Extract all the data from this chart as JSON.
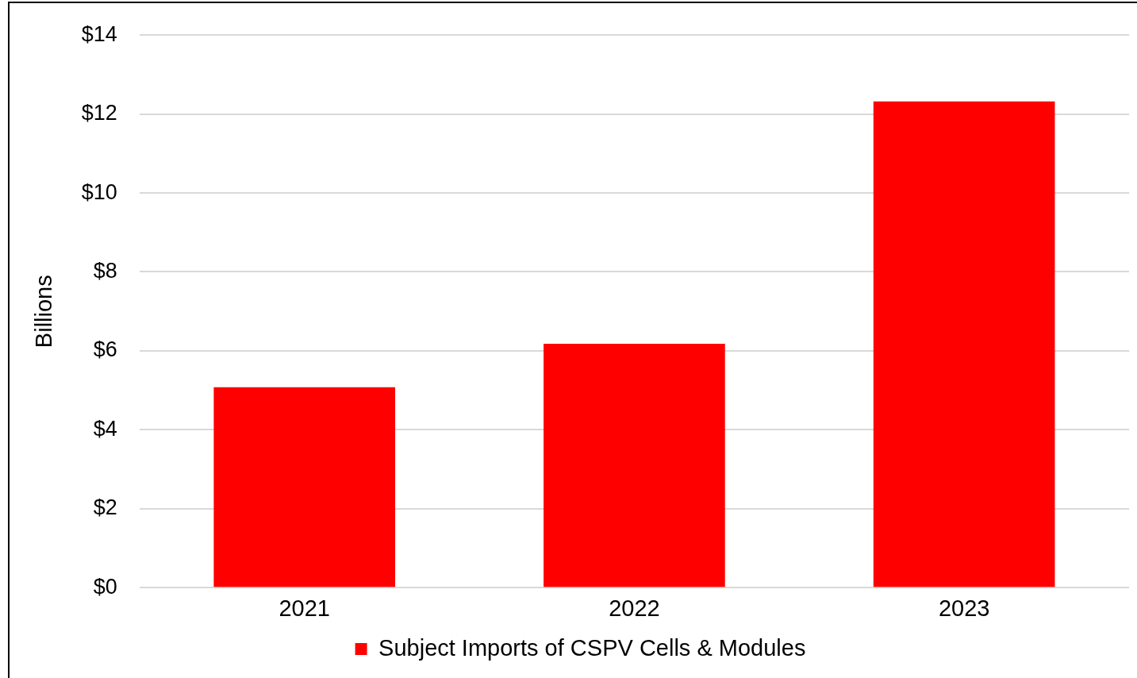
{
  "chart_data": {
    "type": "bar",
    "ylabel": "Billions",
    "categories": [
      "2021",
      "2022",
      "2023"
    ],
    "series": [
      {
        "name": "Subject Imports of CSPV Cells & Modules",
        "color": "#ff0000",
        "values": [
          5.08,
          6.18,
          12.32
        ]
      }
    ],
    "ylim": [
      0,
      14
    ],
    "yticks": [
      {
        "value": 0,
        "label": "$0"
      },
      {
        "value": 2,
        "label": "$2"
      },
      {
        "value": 4,
        "label": "$4"
      },
      {
        "value": 6,
        "label": "$6"
      },
      {
        "value": 8,
        "label": "$8"
      },
      {
        "value": 10,
        "label": "$10"
      },
      {
        "value": 12,
        "label": "$12"
      },
      {
        "value": 14,
        "label": "$14"
      }
    ],
    "grid": "y",
    "legend": "bottom"
  }
}
